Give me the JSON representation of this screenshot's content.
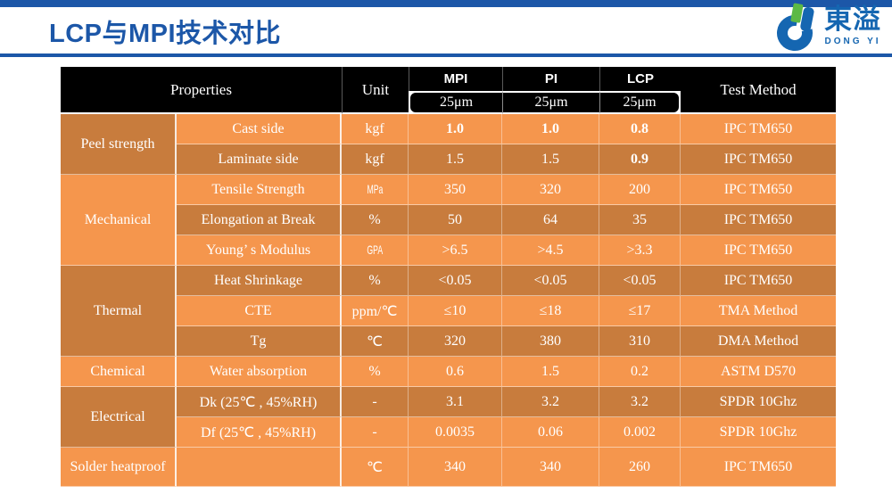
{
  "page": {
    "title": "LCP与MPI技术对比"
  },
  "logo": {
    "cn": "東溢",
    "en": "DONG YI"
  },
  "colors": {
    "accent_blue": "#1c57a8",
    "row_light_orange": "#f5964d",
    "row_dark_orange": "#c87c3d",
    "header_black": "#000000",
    "logo_blue": "#1566b1",
    "logo_green": "#5cb945"
  },
  "table": {
    "header": {
      "properties": "Properties",
      "unit": "Unit",
      "materials": [
        {
          "name": "MPI",
          "thickness": "25μm"
        },
        {
          "name": "PI",
          "thickness": "25μm"
        },
        {
          "name": "LCP",
          "thickness": "25μm"
        }
      ],
      "test_method": "Test Method"
    },
    "groups": [
      {
        "category": "Peel strength",
        "cat_shade": "dark",
        "rows": [
          {
            "property": "Cast side",
            "unit": "kgf",
            "values": [
              "1.0",
              "1.0",
              "0.8"
            ],
            "bold": [
              true,
              true,
              true
            ],
            "method": "IPC TM650",
            "shade": "light"
          },
          {
            "property": "Laminate side",
            "unit": "kgf",
            "values": [
              "1.5",
              "1.5",
              "0.9"
            ],
            "bold": [
              false,
              false,
              true
            ],
            "method": "IPC TM650",
            "shade": "dark"
          }
        ]
      },
      {
        "category": "Mechanical",
        "cat_shade": "light",
        "rows": [
          {
            "property": "Tensile Strength",
            "unit": "MPa",
            "unit_narrow": true,
            "values": [
              "350",
              "320",
              "200"
            ],
            "method": "IPC TM650",
            "shade": "light"
          },
          {
            "property": "Elongation at Break",
            "unit": "%",
            "values": [
              "50",
              "64",
              "35"
            ],
            "method": "IPC TM650",
            "shade": "dark"
          },
          {
            "property": "Young’ s Modulus",
            "unit": "GPA",
            "unit_narrow": true,
            "values": [
              ">6.5",
              ">4.5",
              ">3.3"
            ],
            "method": "IPC TM650",
            "shade": "light"
          }
        ]
      },
      {
        "category": "Thermal",
        "cat_shade": "dark",
        "rows": [
          {
            "property": "Heat Shrinkage",
            "unit": "%",
            "values": [
              "<0.05",
              "<0.05",
              "<0.05"
            ],
            "method": "IPC TM650",
            "shade": "dark"
          },
          {
            "property": "CTE",
            "unit": "ppm/℃",
            "values": [
              "≤10",
              "≤18",
              "≤17"
            ],
            "method": "TMA Method",
            "shade": "light"
          },
          {
            "property": "Tg",
            "unit": "℃",
            "values": [
              "320",
              "380",
              "310"
            ],
            "method": "DMA Method",
            "shade": "dark"
          }
        ]
      },
      {
        "category": "Chemical",
        "cat_shade": "light",
        "rows": [
          {
            "property": "Water absorption",
            "unit": "%",
            "values": [
              "0.6",
              "1.5",
              "0.2"
            ],
            "method": "ASTM D570",
            "shade": "light"
          }
        ]
      },
      {
        "category": "Electrical",
        "cat_shade": "dark",
        "rows": [
          {
            "property": "Dk (25℃ , 45%RH)",
            "unit": "-",
            "values": [
              "3.1",
              "3.2",
              "3.2"
            ],
            "method": "SPDR 10Ghz",
            "shade": "dark"
          },
          {
            "property": "Df (25℃ , 45%RH)",
            "unit": "-",
            "values": [
              "0.0035",
              "0.06",
              "0.002"
            ],
            "method": "SPDR 10Ghz",
            "shade": "light"
          }
        ]
      },
      {
        "category": "Solder heatproof",
        "cat_shade": "light",
        "rows": [
          {
            "property": "",
            "unit": "℃",
            "values": [
              "340",
              "340",
              "260"
            ],
            "method": "IPC TM650",
            "shade": "light",
            "last": true
          }
        ]
      }
    ]
  }
}
